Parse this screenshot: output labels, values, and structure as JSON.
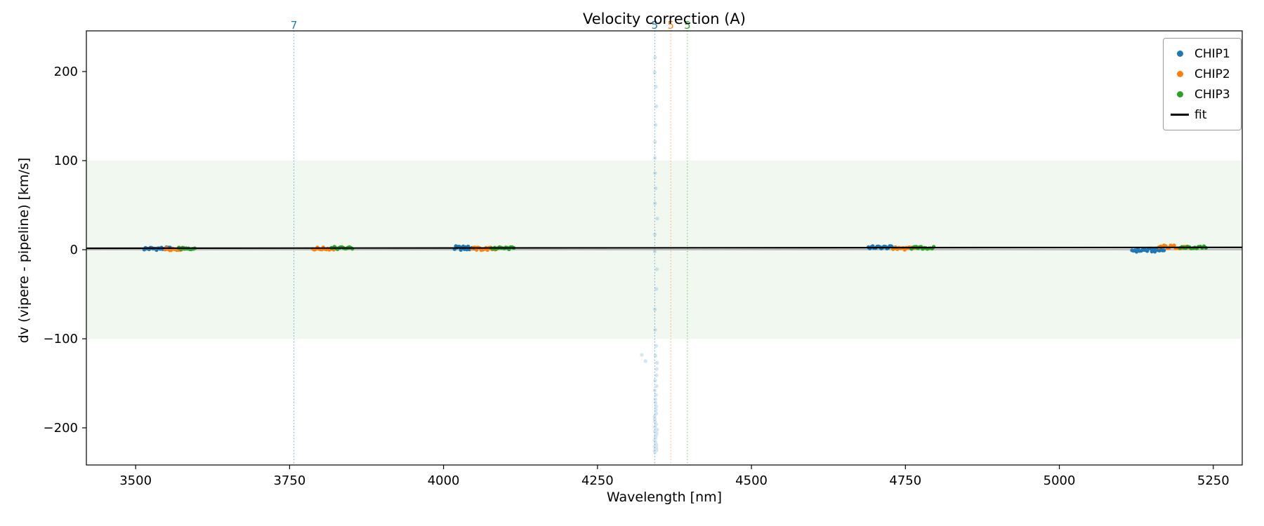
{
  "chart_data": {
    "type": "scatter",
    "title": "Velocity correction (A)",
    "xlabel": "Wavelength [nm]",
    "ylabel": "dv (vipere - pipeline) [km/s]",
    "xlim": [
      3420,
      5297
    ],
    "ylim": [
      -241.7,
      245.7
    ],
    "xticks": [
      3500,
      3750,
      4000,
      4250,
      4500,
      4750,
      5000,
      5250
    ],
    "yticks": [
      -200,
      -100,
      0,
      100,
      200
    ],
    "grid": false,
    "legend_position": "upper right",
    "shaded_band": {
      "y_min": -100,
      "y_max": 100,
      "color": "#2ca02c",
      "opacity": 0.07
    },
    "zero_line": {
      "y": 0,
      "color": "#808080"
    },
    "fit_line": {
      "label": "fit",
      "color": "#000000",
      "x": [
        3420,
        5297
      ],
      "y": [
        1.6,
        2.6
      ]
    },
    "flagged_order_lines": [
      {
        "x": 3757,
        "label": "7",
        "color": "#1f77b4"
      },
      {
        "x": 4343,
        "label": "5",
        "color": "#1f77b4"
      },
      {
        "x": 4369,
        "label": "5",
        "color": "#ff7f0e"
      },
      {
        "x": 4396,
        "label": "5",
        "color": "#2ca02c"
      }
    ],
    "series": [
      {
        "name": "CHIP1",
        "color": "#1f77b4",
        "marker": "dot",
        "clusters": [
          {
            "x_start": 3514,
            "x_end": 3556,
            "n": 22,
            "y": 1.2,
            "jitter": 1.6
          },
          {
            "x_start": 4018,
            "x_end": 4052,
            "n": 18,
            "y": 1.8,
            "jitter": 2.2
          },
          {
            "x_start": 4690,
            "x_end": 4734,
            "n": 20,
            "y": 2.6,
            "jitter": 1.6
          },
          {
            "x_start": 5118,
            "x_end": 5170,
            "n": 22,
            "y": -0.6,
            "jitter": 2.0
          }
        ]
      },
      {
        "name": "CHIP2",
        "color": "#ff7f0e",
        "marker": "dot",
        "clusters": [
          {
            "x_start": 3548,
            "x_end": 3578,
            "n": 17,
            "y": 1.0,
            "jitter": 1.6
          },
          {
            "x_start": 3788,
            "x_end": 3824,
            "n": 16,
            "y": 1.2,
            "jitter": 1.4
          },
          {
            "x_start": 4046,
            "x_end": 4084,
            "n": 16,
            "y": 1.0,
            "jitter": 1.6
          },
          {
            "x_start": 4730,
            "x_end": 4768,
            "n": 17,
            "y": 1.4,
            "jitter": 1.4
          },
          {
            "x_start": 5162,
            "x_end": 5208,
            "n": 18,
            "y": 3.2,
            "jitter": 2.0
          }
        ]
      },
      {
        "name": "CHIP3",
        "color": "#2ca02c",
        "marker": "dot",
        "clusters": [
          {
            "x_start": 3570,
            "x_end": 3596,
            "n": 14,
            "y": 1.6,
            "jitter": 1.4
          },
          {
            "x_start": 3818,
            "x_end": 3852,
            "n": 15,
            "y": 1.8,
            "jitter": 1.4
          },
          {
            "x_start": 4078,
            "x_end": 4114,
            "n": 15,
            "y": 1.6,
            "jitter": 1.4
          },
          {
            "x_start": 4760,
            "x_end": 4796,
            "n": 15,
            "y": 2.0,
            "jitter": 1.4
          },
          {
            "x_start": 5196,
            "x_end": 5238,
            "n": 15,
            "y": 2.6,
            "jitter": 1.4
          }
        ]
      }
    ],
    "outlier_streak": {
      "series": "CHIP1",
      "x": 4345,
      "color": "#1f77b4",
      "opacity": 0.18,
      "y_values": [
        216,
        199,
        183,
        161,
        140,
        121,
        103,
        86,
        69,
        52,
        35,
        17,
        -2,
        -22,
        -44,
        -67,
        -90,
        -108,
        -119,
        -127,
        -134,
        -141,
        -147,
        -153,
        -158,
        -163,
        -168,
        -172,
        -176,
        -180,
        -184,
        -187,
        -190,
        -193,
        -196,
        -199,
        -202,
        -204,
        -206,
        -208,
        -210,
        -212,
        -214,
        -216,
        -218,
        -219,
        -220,
        -221,
        -222,
        -223,
        -224,
        -225,
        -226,
        -227
      ],
      "extra_points": [
        {
          "x": 4322,
          "y": -118
        },
        {
          "x": 4328,
          "y": -125
        }
      ]
    },
    "legend": [
      {
        "label": "CHIP1",
        "marker": "dot",
        "color": "#1f77b4"
      },
      {
        "label": "CHIP2",
        "marker": "dot",
        "color": "#ff7f0e"
      },
      {
        "label": "CHIP3",
        "marker": "dot",
        "color": "#2ca02c"
      },
      {
        "label": "fit",
        "marker": "line",
        "color": "#000000"
      }
    ]
  }
}
